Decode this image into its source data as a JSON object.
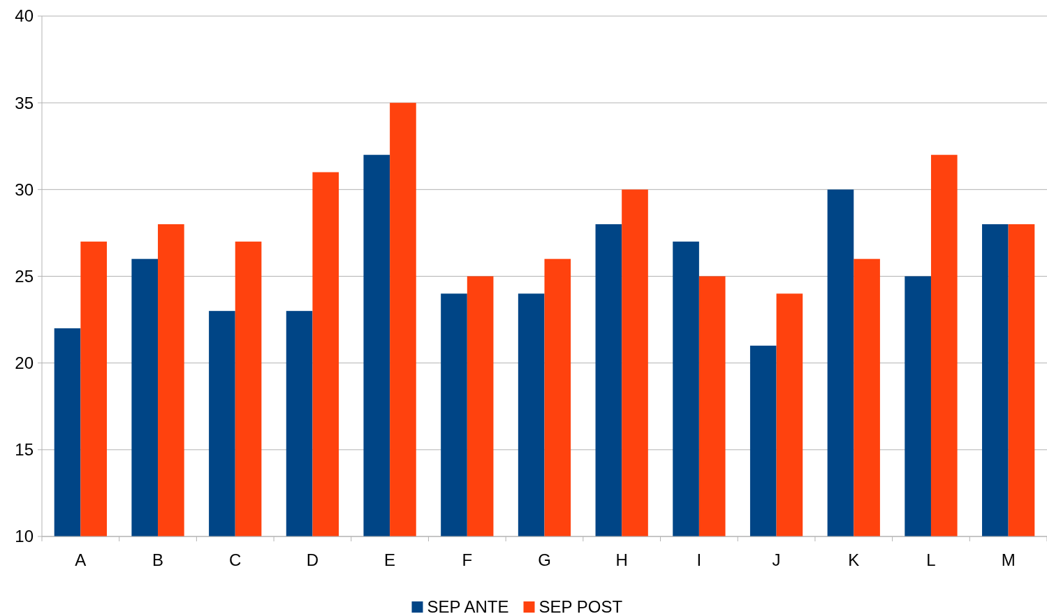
{
  "chart_data": {
    "type": "bar",
    "categories": [
      "A",
      "B",
      "C",
      "D",
      "E",
      "F",
      "G",
      "H",
      "I",
      "J",
      "K",
      "L",
      "M"
    ],
    "series": [
      {
        "name": "SEP ANTE",
        "color": "#004586",
        "values": [
          22,
          26,
          23,
          23,
          32,
          24,
          24,
          28,
          27,
          21,
          30,
          25,
          28
        ]
      },
      {
        "name": "SEP POST",
        "color": "#ff420e",
        "values": [
          27,
          28,
          27,
          31,
          35,
          25,
          26,
          30,
          25,
          24,
          26,
          32,
          28
        ]
      }
    ],
    "ylim": [
      10,
      40
    ],
    "yticks": [
      10,
      15,
      20,
      25,
      30,
      35,
      40
    ],
    "grid": "y",
    "legend": "bottom"
  }
}
